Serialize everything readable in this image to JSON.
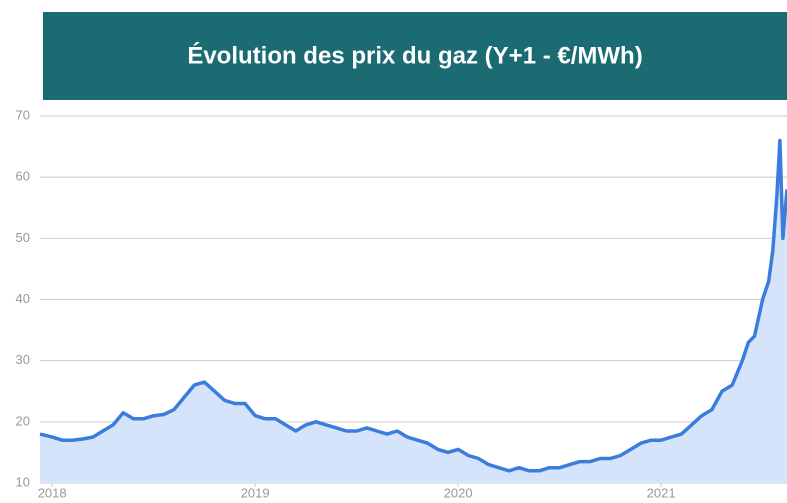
{
  "chart_data": {
    "type": "area",
    "title": "Évolution des prix du gaz (Y+1 - €/MWh)",
    "x": [
      2017.94,
      2018.0,
      2018.05,
      2018.1,
      2018.15,
      2018.2,
      2018.25,
      2018.3,
      2018.35,
      2018.4,
      2018.45,
      2018.5,
      2018.55,
      2018.6,
      2018.65,
      2018.7,
      2018.75,
      2018.8,
      2018.85,
      2018.9,
      2018.95,
      2019.0,
      2019.05,
      2019.1,
      2019.15,
      2019.2,
      2019.25,
      2019.3,
      2019.35,
      2019.4,
      2019.45,
      2019.5,
      2019.55,
      2019.6,
      2019.65,
      2019.7,
      2019.75,
      2019.8,
      2019.85,
      2019.9,
      2019.95,
      2020.0,
      2020.05,
      2020.1,
      2020.15,
      2020.2,
      2020.25,
      2020.3,
      2020.35,
      2020.4,
      2020.45,
      2020.5,
      2020.55,
      2020.6,
      2020.65,
      2020.7,
      2020.75,
      2020.8,
      2020.85,
      2020.9,
      2020.95,
      2021.0,
      2021.05,
      2021.1,
      2021.15,
      2021.2,
      2021.25,
      2021.3,
      2021.35,
      2021.4,
      2021.43,
      2021.46,
      2021.5,
      2021.53,
      2021.55,
      2021.57,
      2021.585,
      2021.6,
      2021.62
    ],
    "values": [
      18,
      17.5,
      17,
      17,
      17.2,
      17.5,
      18.5,
      19.5,
      21.5,
      20.5,
      20.5,
      21,
      21.2,
      22,
      24,
      26,
      26.5,
      25,
      23.5,
      23,
      23,
      21,
      20.5,
      20.5,
      19.5,
      18.5,
      19.5,
      20,
      19.5,
      19,
      18.5,
      18.5,
      19,
      18.5,
      18,
      18.5,
      17.5,
      17,
      16.5,
      15.5,
      15,
      15.5,
      14.5,
      14,
      13,
      12.5,
      12,
      12.5,
      12,
      12,
      12.5,
      12.5,
      13,
      13.5,
      13.5,
      14,
      14,
      14.5,
      15.5,
      16.5,
      17,
      17,
      17.5,
      18,
      19.5,
      21,
      22,
      25,
      26,
      30,
      33,
      34,
      40,
      43,
      48,
      57,
      66,
      50,
      58
    ],
    "color": "#3b7ddd",
    "fill": "#d6e4fb",
    "xlim": [
      2017.94,
      2021.62
    ],
    "xticks": [
      2018,
      2019,
      2020,
      2021
    ],
    "ylim": [
      10,
      70
    ],
    "yticks": [
      10,
      20,
      30,
      40,
      50,
      60,
      70
    ],
    "grid": true
  }
}
